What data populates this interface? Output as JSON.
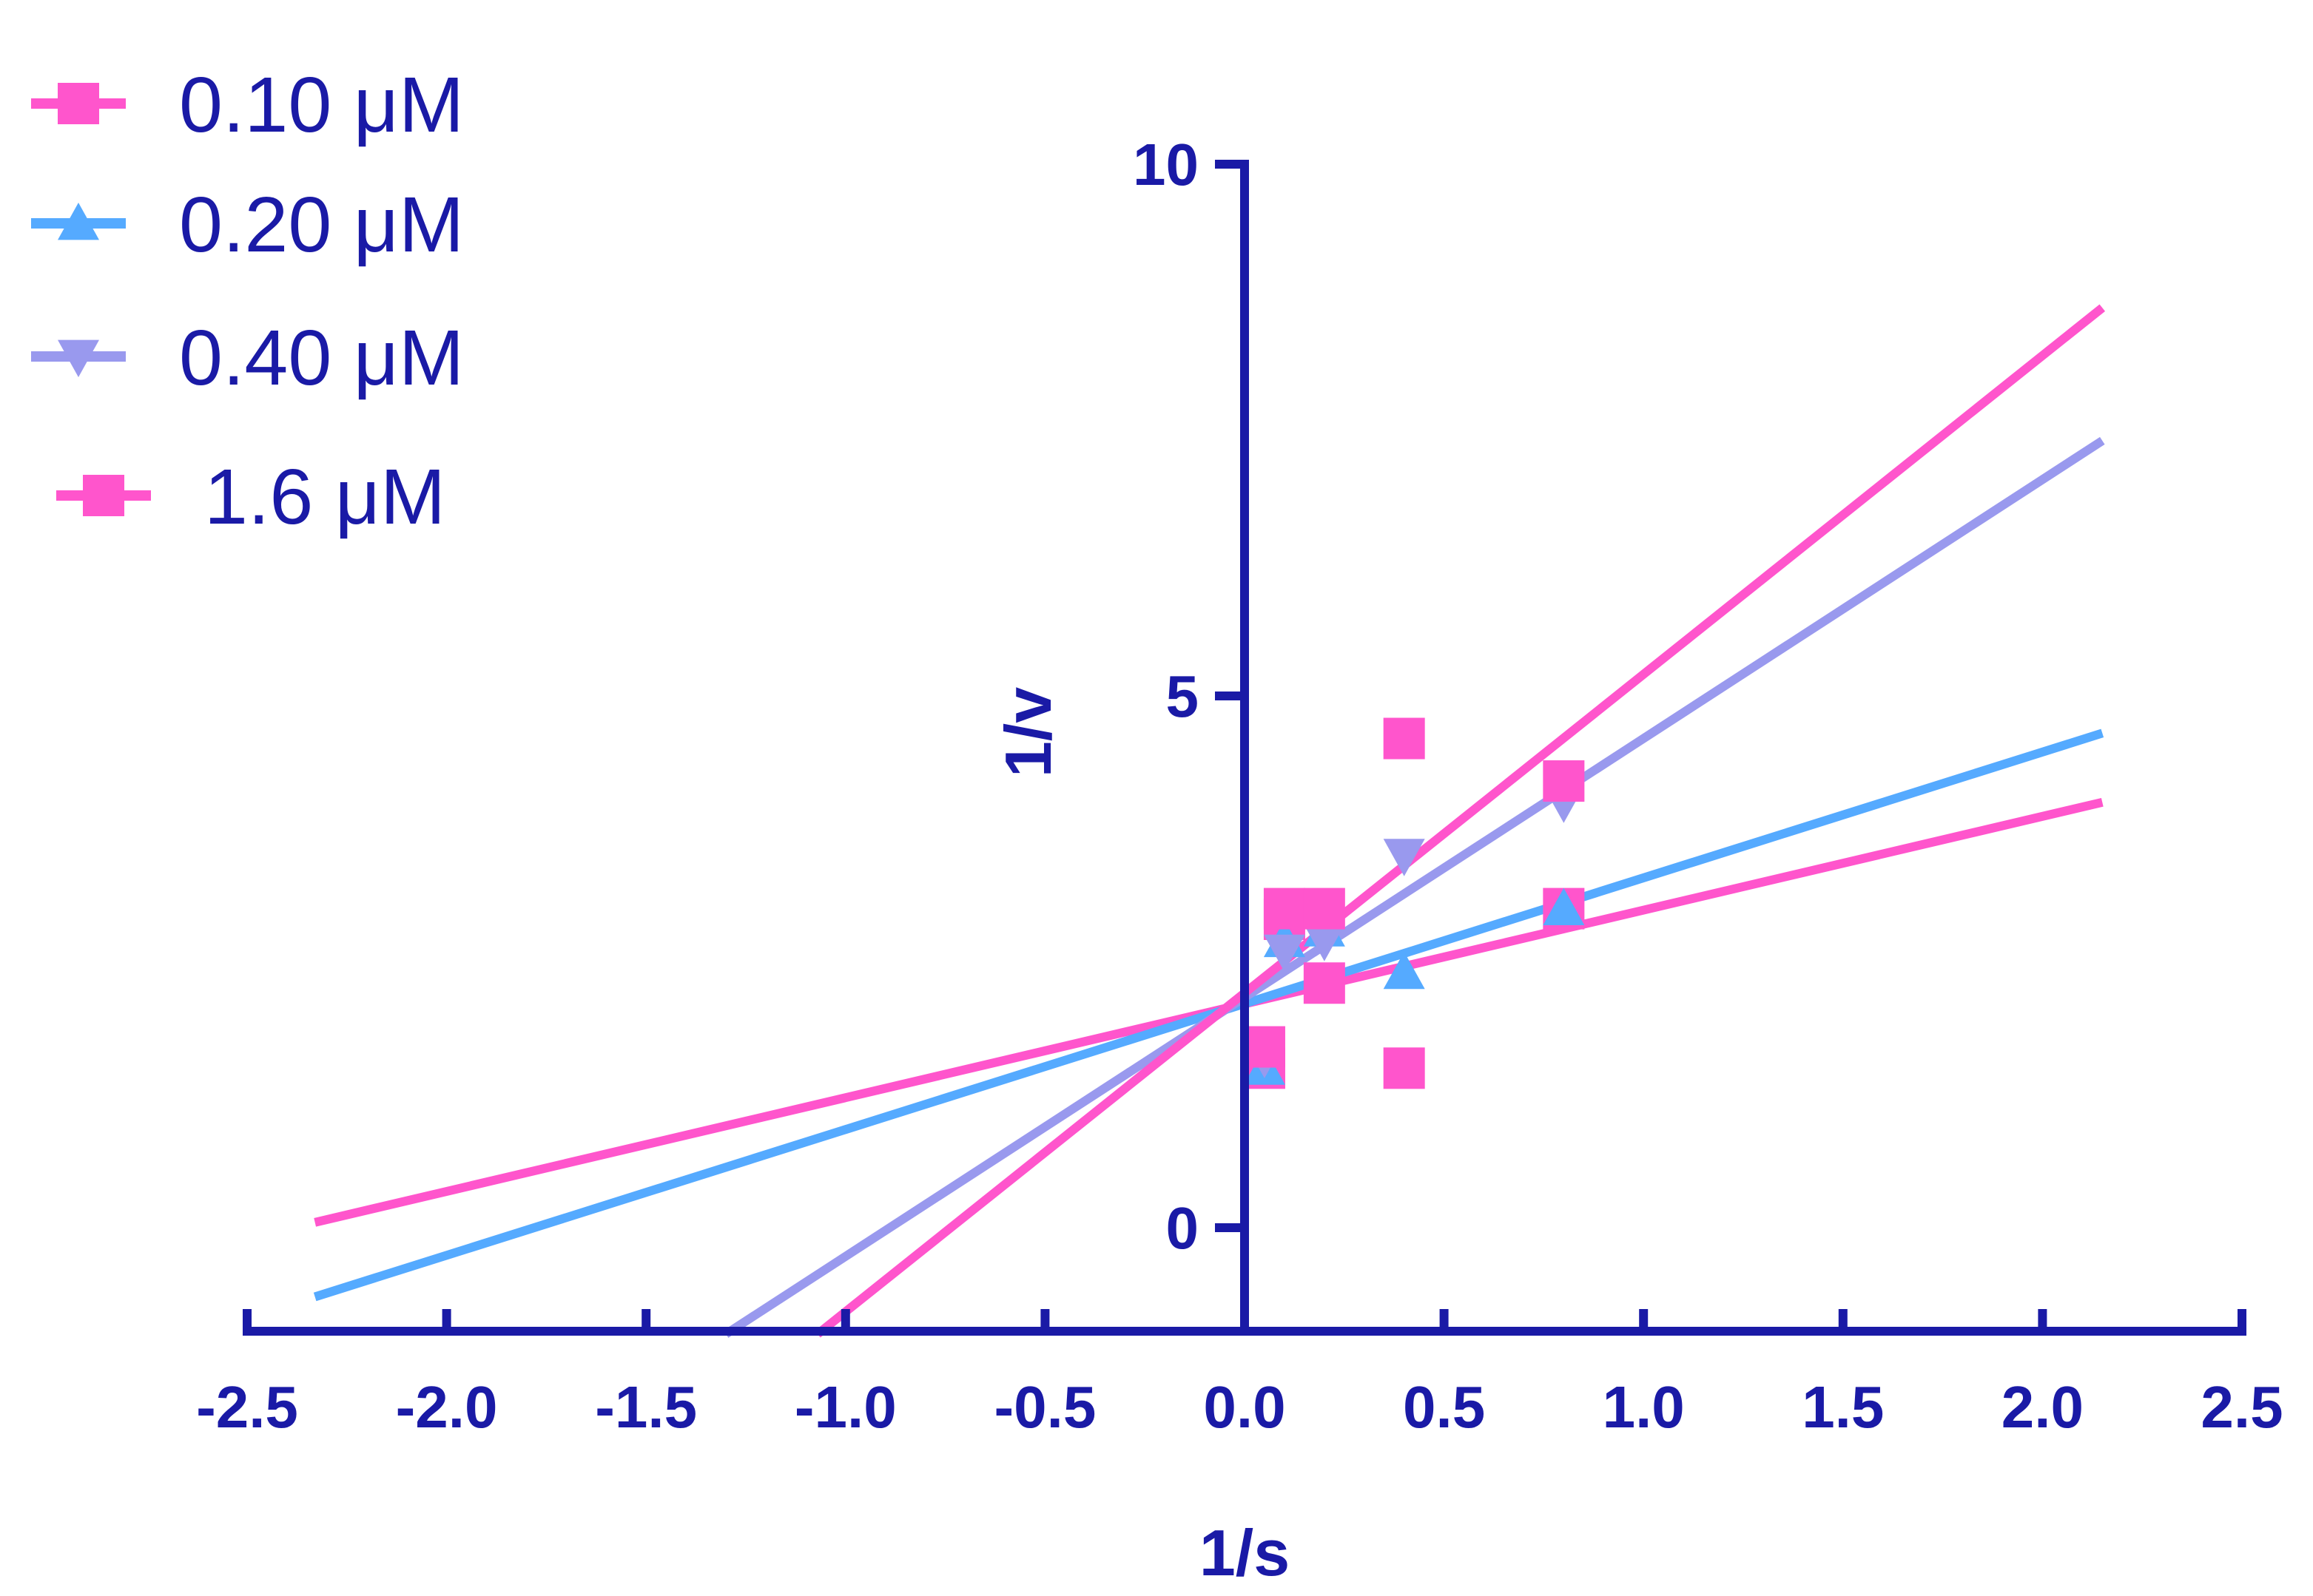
{
  "chart_data": {
    "type": "scatter",
    "xlabel": "1/s",
    "ylabel": "1/v",
    "xlim": [
      -2.5,
      2.5
    ],
    "ylim": [
      -1,
      10
    ],
    "x_ticks": [
      "-2.5",
      "-2.0",
      "-1.5",
      "-1.0",
      "-0.5",
      "0.0",
      "0.5",
      "1.0",
      "1.5",
      "2.0",
      "2.5"
    ],
    "y_ticks": [
      "0",
      "5",
      "10"
    ],
    "axis_color": "#1a1aa6",
    "legend_position": "top-left",
    "grid": false,
    "series": [
      {
        "name": "0.10 μM",
        "marker": "square",
        "color": "#ff55cc",
        "points": [
          [
            0.05,
            1.5
          ],
          [
            0.1,
            2.9
          ],
          [
            0.2,
            2.3
          ],
          [
            0.4,
            1.5
          ],
          [
            0.8,
            3.0
          ]
        ],
        "fit": {
          "x": [
            -2.33,
            2.15
          ],
          "y": [
            0.05,
            4.0
          ]
        }
      },
      {
        "name": "0.20 μM",
        "marker": "triangle-up",
        "color": "#55aaff",
        "points": [
          [
            0.05,
            1.5
          ],
          [
            0.1,
            2.7
          ],
          [
            0.2,
            2.8
          ],
          [
            0.4,
            2.4
          ],
          [
            0.8,
            3.0
          ]
        ],
        "fit": {
          "x": [
            -2.33,
            2.15
          ],
          "y": [
            -0.65,
            4.65
          ]
        }
      },
      {
        "name": "0.40 μM",
        "marker": "triangle-down",
        "color": "#9999ee",
        "points": [
          [
            0.05,
            1.6
          ],
          [
            0.1,
            2.6
          ],
          [
            0.2,
            2.7
          ],
          [
            0.4,
            3.5
          ],
          [
            0.8,
            4.0
          ]
        ],
        "fit": {
          "x": [
            -1.3,
            2.15
          ],
          "y": [
            -1.0,
            7.4
          ]
        }
      },
      {
        "name": "1.6 μM",
        "marker": "square",
        "color": "#ff55cc",
        "points": [
          [
            0.05,
            1.7
          ],
          [
            0.1,
            3.0
          ],
          [
            0.2,
            3.0
          ],
          [
            0.4,
            4.6
          ],
          [
            0.8,
            4.2
          ]
        ],
        "fit": {
          "x": [
            -1.07,
            2.15
          ],
          "y": [
            -1.0,
            8.65
          ]
        }
      }
    ]
  }
}
